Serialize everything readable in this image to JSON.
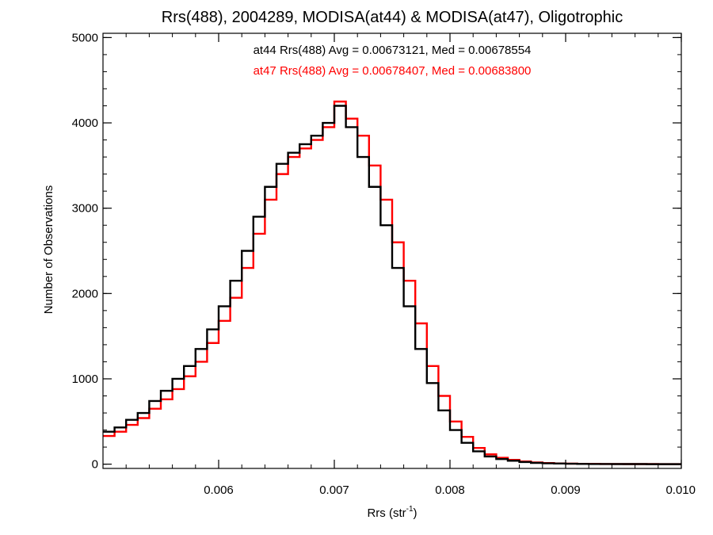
{
  "chart_data": {
    "type": "line",
    "title": "Rrs(488), 2004289, MODISA(at44) & MODISA(at47), Oligotrophic",
    "xlabel": "Rrs (str",
    "xlabel_sup": "-1",
    "xlabel_tail": ")",
    "ylabel": "Number of Observations",
    "xlim": [
      0.005,
      0.01
    ],
    "ylim": [
      -50,
      5050
    ],
    "xticks": [
      0.006,
      0.007,
      0.008,
      0.009,
      0.01
    ],
    "xtick_labels": [
      "0.006",
      "0.007",
      "0.008",
      "0.009",
      "0.010"
    ],
    "yticks": [
      0,
      1000,
      2000,
      3000,
      4000,
      5000
    ],
    "ytick_labels": [
      "0",
      "1000",
      "2000",
      "3000",
      "4000",
      "5000"
    ],
    "grid": false,
    "legend_position": "top-center",
    "series": [
      {
        "name": "at44 Rrs(488) Avg = 0.00673121, Med = 0.00678554",
        "color": "#000000",
        "x": [
          0.005,
          0.0051,
          0.0052,
          0.0053,
          0.0054,
          0.0055,
          0.0056,
          0.0057,
          0.0058,
          0.0059,
          0.006,
          0.0061,
          0.0062,
          0.0063,
          0.0064,
          0.0065,
          0.0066,
          0.0067,
          0.0068,
          0.0069,
          0.007,
          0.0071,
          0.0072,
          0.0073,
          0.0074,
          0.0075,
          0.0076,
          0.0077,
          0.0078,
          0.0079,
          0.008,
          0.0081,
          0.0082,
          0.0083,
          0.0084,
          0.0085,
          0.0086,
          0.0087,
          0.0088,
          0.0089,
          0.009,
          0.0091,
          0.0092,
          0.0093,
          0.0094,
          0.0095,
          0.0096,
          0.0097,
          0.0098,
          0.0099,
          0.01
        ],
        "values": [
          380,
          430,
          520,
          600,
          740,
          860,
          1000,
          1150,
          1350,
          1580,
          1850,
          2150,
          2500,
          2900,
          3250,
          3520,
          3650,
          3750,
          3850,
          4000,
          4200,
          3950,
          3600,
          3250,
          2800,
          2300,
          1850,
          1350,
          950,
          630,
          400,
          250,
          150,
          90,
          60,
          40,
          25,
          15,
          10,
          7,
          5,
          3,
          2,
          2,
          1,
          1,
          1,
          0,
          0,
          0,
          0
        ]
      },
      {
        "name": "at47 Rrs(488) Avg = 0.00678407, Med = 0.00683800",
        "color": "#ff0000",
        "x": [
          0.005,
          0.0051,
          0.0052,
          0.0053,
          0.0054,
          0.0055,
          0.0056,
          0.0057,
          0.0058,
          0.0059,
          0.006,
          0.0061,
          0.0062,
          0.0063,
          0.0064,
          0.0065,
          0.0066,
          0.0067,
          0.0068,
          0.0069,
          0.007,
          0.0071,
          0.0072,
          0.0073,
          0.0074,
          0.0075,
          0.0076,
          0.0077,
          0.0078,
          0.0079,
          0.008,
          0.0081,
          0.0082,
          0.0083,
          0.0084,
          0.0085,
          0.0086,
          0.0087,
          0.0088,
          0.0089,
          0.009,
          0.0091,
          0.0092,
          0.0093,
          0.0094,
          0.0095,
          0.0096,
          0.0097,
          0.0098,
          0.0099,
          0.01
        ],
        "values": [
          330,
          380,
          460,
          540,
          650,
          760,
          880,
          1030,
          1200,
          1420,
          1680,
          1950,
          2300,
          2700,
          3100,
          3400,
          3600,
          3700,
          3800,
          3950,
          4250,
          4050,
          3850,
          3500,
          3100,
          2600,
          2150,
          1650,
          1150,
          800,
          500,
          320,
          190,
          115,
          75,
          50,
          32,
          20,
          13,
          9,
          6,
          4,
          3,
          2,
          2,
          1,
          1,
          1,
          0,
          0,
          0
        ]
      }
    ]
  }
}
